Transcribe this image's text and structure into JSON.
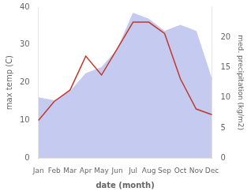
{
  "chart_data": {
    "type": "line",
    "x_label": "date (month)",
    "y_label": "max temp (C)",
    "y2_label": "med. precipitation (kg/m2)",
    "categories": [
      "Jan",
      "Feb",
      "Mar",
      "Apr",
      "May",
      "Jun",
      "Jul",
      "Aug",
      "Sep",
      "Oct",
      "Nov",
      "Dec"
    ],
    "series": [
      {
        "type": "area",
        "color": "#c5caf0",
        "axis": "y2",
        "values": [
          10,
          9.5,
          11,
          14,
          15,
          18,
          24,
          23,
          21,
          22,
          21,
          13
        ]
      },
      {
        "type": "line",
        "color": "#c0392b",
        "values": [
          10,
          15,
          18,
          27,
          22,
          29,
          36,
          36,
          33,
          21,
          13,
          11.5
        ]
      }
    ],
    "ylim": [
      0,
      40
    ],
    "yticks": [
      0,
      10,
      20,
      30,
      40
    ],
    "y2lim": [
      0,
      25
    ],
    "y2ticks": [
      0,
      5,
      10,
      15,
      20
    ],
    "grid": false
  }
}
